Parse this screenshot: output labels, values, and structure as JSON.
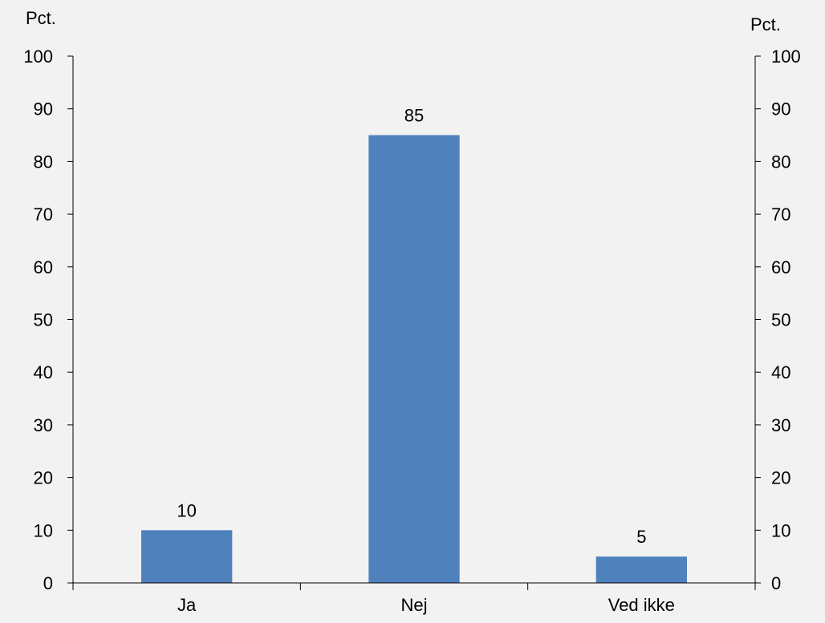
{
  "chart_data": {
    "type": "bar",
    "categories": [
      "Ja",
      "Nej",
      "Ved ikke"
    ],
    "values": [
      10,
      85,
      5
    ],
    "data_labels": [
      "10",
      "85",
      "5"
    ],
    "left_axis_unit": "Pct.",
    "right_axis_unit": "Pct.",
    "ylim": [
      0,
      100
    ],
    "yticks": [
      "0",
      "10",
      "20",
      "30",
      "40",
      "50",
      "60",
      "70",
      "80",
      "90",
      "100"
    ],
    "ytick_values": [
      0,
      10,
      20,
      30,
      40,
      50,
      60,
      70,
      80,
      90,
      100
    ],
    "grid": false,
    "bar_color": "#4f81bd",
    "axis_color": "#000000",
    "background_color": "#f2f2f2"
  }
}
